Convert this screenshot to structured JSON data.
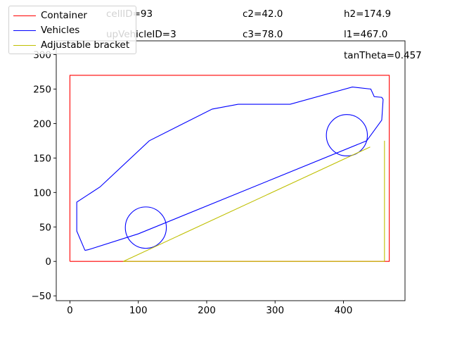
{
  "chart_data": {
    "type": "line",
    "title": "",
    "xlabel": "",
    "ylabel": "",
    "xlim": [
      -20,
      490
    ],
    "ylim": [
      -57,
      320
    ],
    "xticks": [
      0,
      100,
      200,
      300,
      400
    ],
    "yticks": [
      -50,
      0,
      50,
      100,
      150,
      200,
      250,
      300
    ],
    "grid": false,
    "legend_position": "top-left",
    "legend": [
      {
        "label": "Container",
        "color": "#ff0000"
      },
      {
        "label": "Vehicles",
        "color": "#0000ff"
      },
      {
        "label": "Adjustable bracket",
        "color": "#bfbf00"
      }
    ],
    "series": [
      {
        "name": "Container",
        "color": "#ff0000",
        "kind": "polyline",
        "points": [
          [
            0,
            0
          ],
          [
            467,
            0
          ],
          [
            467,
            270
          ],
          [
            0,
            270
          ],
          [
            0,
            0
          ]
        ]
      },
      {
        "name": "Vehicles",
        "color": "#0000ff",
        "kind": "polyline",
        "points": [
          [
            22,
            16
          ],
          [
            27,
            17
          ],
          [
            100,
            40
          ],
          [
            434,
            175
          ],
          [
            456,
            205
          ],
          [
            458,
            235
          ],
          [
            456,
            238
          ],
          [
            445,
            239
          ],
          [
            440,
            250
          ],
          [
            413,
            253
          ],
          [
            322,
            228
          ],
          [
            246,
            228
          ],
          [
            208,
            221
          ],
          [
            116,
            175
          ],
          [
            44,
            108
          ],
          [
            10,
            86
          ],
          [
            10,
            44
          ],
          [
            22,
            16
          ]
        ]
      },
      {
        "name": "Vehicles",
        "color": "#0000ff",
        "kind": "circle",
        "center": [
          111,
          49
        ],
        "radius": 30
      },
      {
        "name": "Vehicles",
        "color": "#0000ff",
        "kind": "circle",
        "center": [
          405,
          183
        ],
        "radius": 30
      },
      {
        "name": "Adjustable bracket",
        "color": "#bfbf00",
        "kind": "polyline",
        "points": [
          [
            78,
            0
          ],
          [
            439,
            166
          ]
        ]
      },
      {
        "name": "Adjustable bracket",
        "color": "#bfbf00",
        "kind": "polyline",
        "points": [
          [
            78,
            0
          ],
          [
            460,
            0
          ]
        ]
      },
      {
        "name": "Adjustable bracket",
        "color": "#bfbf00",
        "kind": "polyline",
        "points": [
          [
            460,
            0
          ],
          [
            460,
            175
          ]
        ]
      }
    ],
    "annotations": [
      {
        "key": "cellID",
        "text": "cellID=93"
      },
      {
        "key": "upVehicleID",
        "text": "upVehicleID=3"
      },
      {
        "key": "c2",
        "text": "c2=42.0"
      },
      {
        "key": "c3",
        "text": "c3=78.0"
      },
      {
        "key": "h2",
        "text": "h2=174.9"
      },
      {
        "key": "l1",
        "text": "l1=467.0"
      },
      {
        "key": "tanTheta",
        "text": "tanTheta=0.457"
      }
    ]
  }
}
